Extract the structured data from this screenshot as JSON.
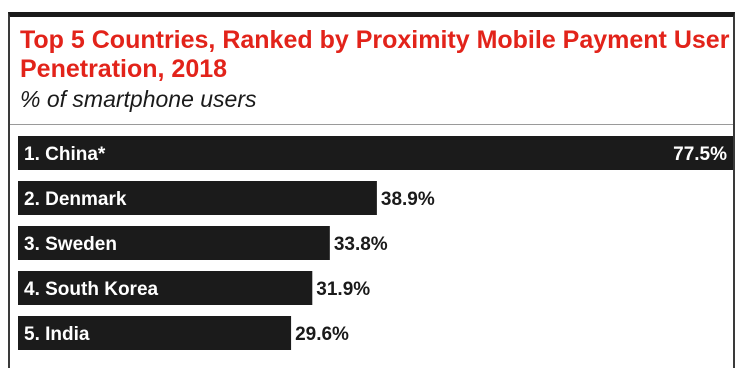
{
  "chart_data": {
    "type": "bar",
    "orientation": "horizontal",
    "title": "Top 5 Countries, Ranked by Proximity Mobile Payment User Penetration, 2018",
    "subtitle": "% of smartphone users",
    "categories": [
      "1. China*",
      "2. Denmark",
      "3. Sweden",
      "4. South Korea",
      "5. India"
    ],
    "values": [
      77.5,
      38.9,
      33.8,
      31.9,
      29.6
    ],
    "value_labels": [
      "77.5%",
      "38.9%",
      "33.8%",
      "31.9%",
      "29.6%"
    ],
    "xlim": [
      0,
      77.5
    ],
    "grid": false,
    "legend": "none",
    "colors": {
      "bar": "#1b1b1b",
      "title": "#e2231a",
      "label_on_bar": "#ffffff",
      "label_off_bar": "#1a1a1a"
    }
  }
}
